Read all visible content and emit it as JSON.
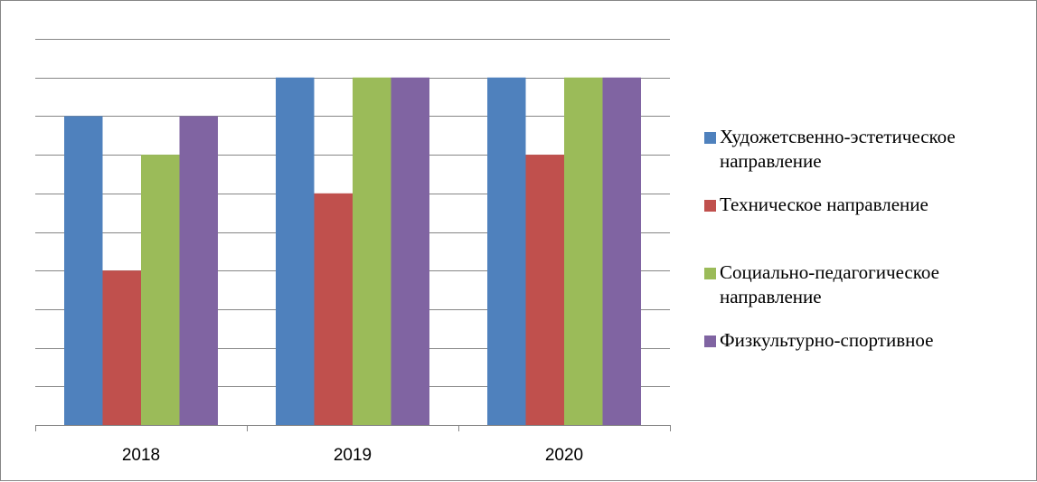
{
  "chart_data": {
    "type": "bar",
    "categories": [
      "2018",
      "2019",
      "2020"
    ],
    "series": [
      {
        "name": "Художетсвенно-эстетическое направление",
        "color": "#4F81BD",
        "values": [
          8,
          9,
          9
        ]
      },
      {
        "name": "Техническое направление",
        "color": "#C0504D",
        "values": [
          4,
          6,
          7
        ]
      },
      {
        "name": "Социально-педагогическое направление",
        "color": "#9BBB59",
        "values": [
          7,
          9,
          9
        ]
      },
      {
        "name": "Физкультурно-спортивное",
        "color": "#8064A2",
        "values": [
          8,
          9,
          9
        ]
      }
    ],
    "ylim": [
      0,
      10
    ],
    "grid": true,
    "legend": "right"
  }
}
